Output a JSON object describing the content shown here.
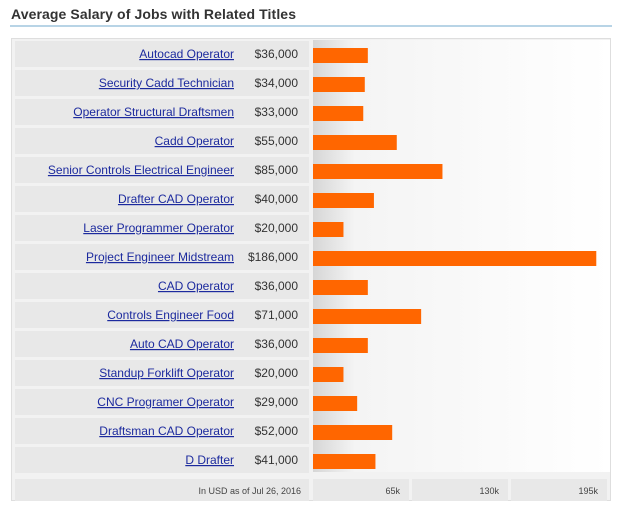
{
  "title": "Average Salary of Jobs with Related Titles",
  "colors": {
    "bar": "#ff6600",
    "link": "#1c2a9e",
    "label_bg": "#e8e8e8",
    "title_rule": "#b8d4e6"
  },
  "chart_data": {
    "type": "bar",
    "orientation": "horizontal",
    "title": "Average Salary of Jobs with Related Titles",
    "categories": [
      "Autocad Operator",
      "Security Cadd Technician",
      "Operator Structural Draftsmen",
      "Cadd Operator",
      "Senior Controls Electrical Engineer",
      "Drafter CAD Operator",
      "Laser Programmer Operator",
      "Project Engineer Midstream",
      "CAD Operator",
      "Controls Engineer Food",
      "Auto CAD Operator",
      "Standup Forklift Operator",
      "CNC Programer Operator",
      "Draftsman CAD Operator",
      "D Drafter"
    ],
    "values": [
      36000,
      34000,
      33000,
      55000,
      85000,
      40000,
      20000,
      186000,
      36000,
      71000,
      36000,
      20000,
      29000,
      52000,
      41000
    ],
    "value_labels": [
      "$36,000",
      "$34,000",
      "$33,000",
      "$55,000",
      "$85,000",
      "$40,000",
      "$20,000",
      "$186,000",
      "$36,000",
      "$71,000",
      "$36,000",
      "$20,000",
      "$29,000",
      "$52,000",
      "$41,000"
    ],
    "xlim": [
      0,
      195000
    ],
    "xticks": [
      65000,
      130000,
      195000
    ],
    "xtick_labels": [
      "65k",
      "130k",
      "195k"
    ],
    "footnote": "In USD as of Jul 26, 2016"
  }
}
